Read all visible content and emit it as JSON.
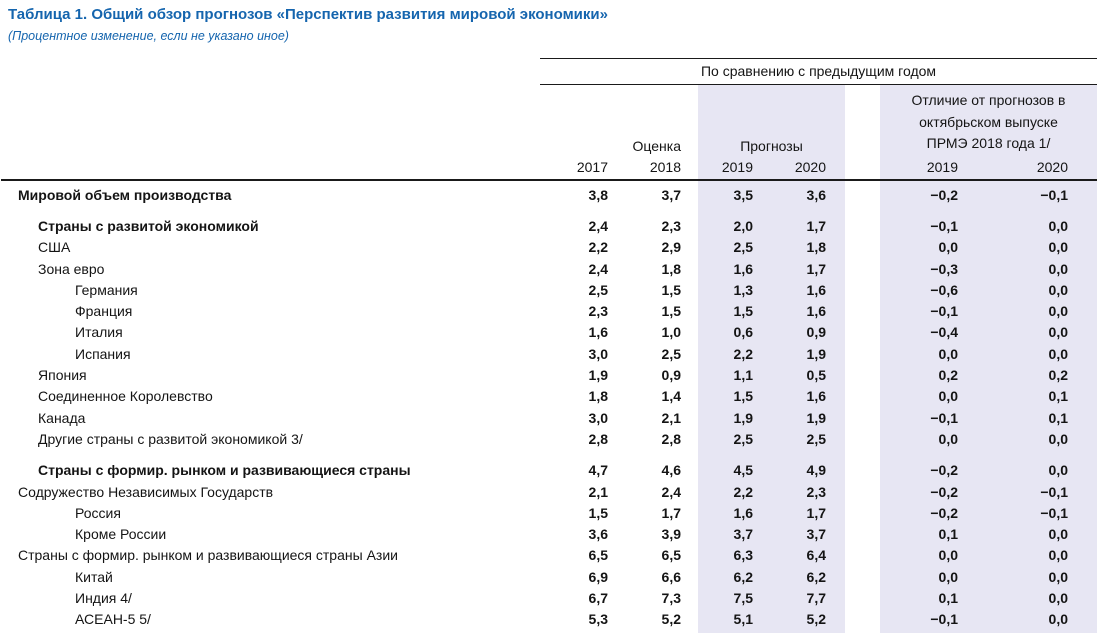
{
  "title": "Таблица 1. Общий обзор прогнозов «Перспектив развития мировой экономики»",
  "subtitle": "(Процентное изменение, если не указано иное)",
  "colors": {
    "title_blue": "#1565ae",
    "column_highlight": "#e7e6f3"
  },
  "header": {
    "span_label": "По сравнению с предыдущим годом",
    "estimate_label": "Оценка",
    "forecast_label": "Прогнозы",
    "diff_label_lines": [
      "Отличие от прогнозов  в",
      "октябрьском выпуске",
      "ПРМЭ 2018 года 1/"
    ],
    "years": [
      "2017",
      "2018",
      "2019",
      "2020",
      "2019",
      "2020"
    ]
  },
  "rows": [
    {
      "label": "Мировой объем производства",
      "bold": true,
      "indent": 0,
      "gap_before": false,
      "values": [
        "3,8",
        "3,7",
        "3,5",
        "3,6",
        "−0,2",
        "−0,1"
      ]
    },
    {
      "label": "Страны с развитой экономикой",
      "bold": true,
      "indent": 1,
      "gap_before": true,
      "values": [
        "2,4",
        "2,3",
        "2,0",
        "1,7",
        "−0,1",
        "0,0"
      ]
    },
    {
      "label": "США",
      "bold": false,
      "indent": 1,
      "gap_before": false,
      "values": [
        "2,2",
        "2,9",
        "2,5",
        "1,8",
        "0,0",
        "0,0"
      ]
    },
    {
      "label": "Зона евро",
      "bold": false,
      "indent": 1,
      "gap_before": false,
      "values": [
        "2,4",
        "1,8",
        "1,6",
        "1,7",
        "−0,3",
        "0,0"
      ]
    },
    {
      "label": "Германия",
      "bold": false,
      "indent": 2,
      "gap_before": false,
      "values": [
        "2,5",
        "1,5",
        "1,3",
        "1,6",
        "−0,6",
        "0,0"
      ]
    },
    {
      "label": "Франция",
      "bold": false,
      "indent": 2,
      "gap_before": false,
      "values": [
        "2,3",
        "1,5",
        "1,5",
        "1,6",
        "−0,1",
        "0,0"
      ]
    },
    {
      "label": "Италия",
      "bold": false,
      "indent": 2,
      "gap_before": false,
      "values": [
        "1,6",
        "1,0",
        "0,6",
        "0,9",
        "−0,4",
        "0,0"
      ]
    },
    {
      "label": "Испания",
      "bold": false,
      "indent": 2,
      "gap_before": false,
      "values": [
        "3,0",
        "2,5",
        "2,2",
        "1,9",
        "0,0",
        "0,0"
      ]
    },
    {
      "label": "Япония",
      "bold": false,
      "indent": 1,
      "gap_before": false,
      "values": [
        "1,9",
        "0,9",
        "1,1",
        "0,5",
        "0,2",
        "0,2"
      ]
    },
    {
      "label": "Соединенное Королевство",
      "bold": false,
      "indent": 1,
      "gap_before": false,
      "values": [
        "1,8",
        "1,4",
        "1,5",
        "1,6",
        "0,0",
        "0,1"
      ]
    },
    {
      "label": "Канада",
      "bold": false,
      "indent": 1,
      "gap_before": false,
      "values": [
        "3,0",
        "2,1",
        "1,9",
        "1,9",
        "−0,1",
        "0,1"
      ]
    },
    {
      "label": "Другие страны с развитой экономикой 3/",
      "bold": false,
      "indent": 1,
      "gap_before": false,
      "values": [
        "2,8",
        "2,8",
        "2,5",
        "2,5",
        "0,0",
        "0,0"
      ]
    },
    {
      "label": "Страны с формир. рынком и развивающиеся страны",
      "bold": true,
      "indent": 1,
      "gap_before": true,
      "values": [
        "4,7",
        "4,6",
        "4,5",
        "4,9",
        "−0,2",
        "0,0"
      ]
    },
    {
      "label": "Содружество Независимых Государств",
      "bold": false,
      "indent": 0,
      "gap_before": false,
      "values": [
        "2,1",
        "2,4",
        "2,2",
        "2,3",
        "−0,2",
        "−0,1"
      ]
    },
    {
      "label": "Россия",
      "bold": false,
      "indent": 2,
      "gap_before": false,
      "values": [
        "1,5",
        "1,7",
        "1,6",
        "1,7",
        "−0,2",
        "−0,1"
      ]
    },
    {
      "label": "Кроме России",
      "bold": false,
      "indent": 2,
      "gap_before": false,
      "values": [
        "3,6",
        "3,9",
        "3,7",
        "3,7",
        "0,1",
        "0,0"
      ]
    },
    {
      "label": "Страны с формир. рынком и развивающиеся страны Азии",
      "bold": false,
      "indent": 0,
      "gap_before": false,
      "values": [
        "6,5",
        "6,5",
        "6,3",
        "6,4",
        "0,0",
        "0,0"
      ]
    },
    {
      "label": "Китай",
      "bold": false,
      "indent": 2,
      "gap_before": false,
      "values": [
        "6,9",
        "6,6",
        "6,2",
        "6,2",
        "0,0",
        "0,0"
      ]
    },
    {
      "label": "Индия 4/",
      "bold": false,
      "indent": 2,
      "gap_before": false,
      "values": [
        "6,7",
        "7,3",
        "7,5",
        "7,7",
        "0,1",
        "0,0"
      ]
    },
    {
      "label": "АСЕАН-5 5/",
      "bold": false,
      "indent": 2,
      "gap_before": false,
      "values": [
        "5,3",
        "5,2",
        "5,1",
        "5,2",
        "−0,1",
        "0,0"
      ]
    }
  ]
}
